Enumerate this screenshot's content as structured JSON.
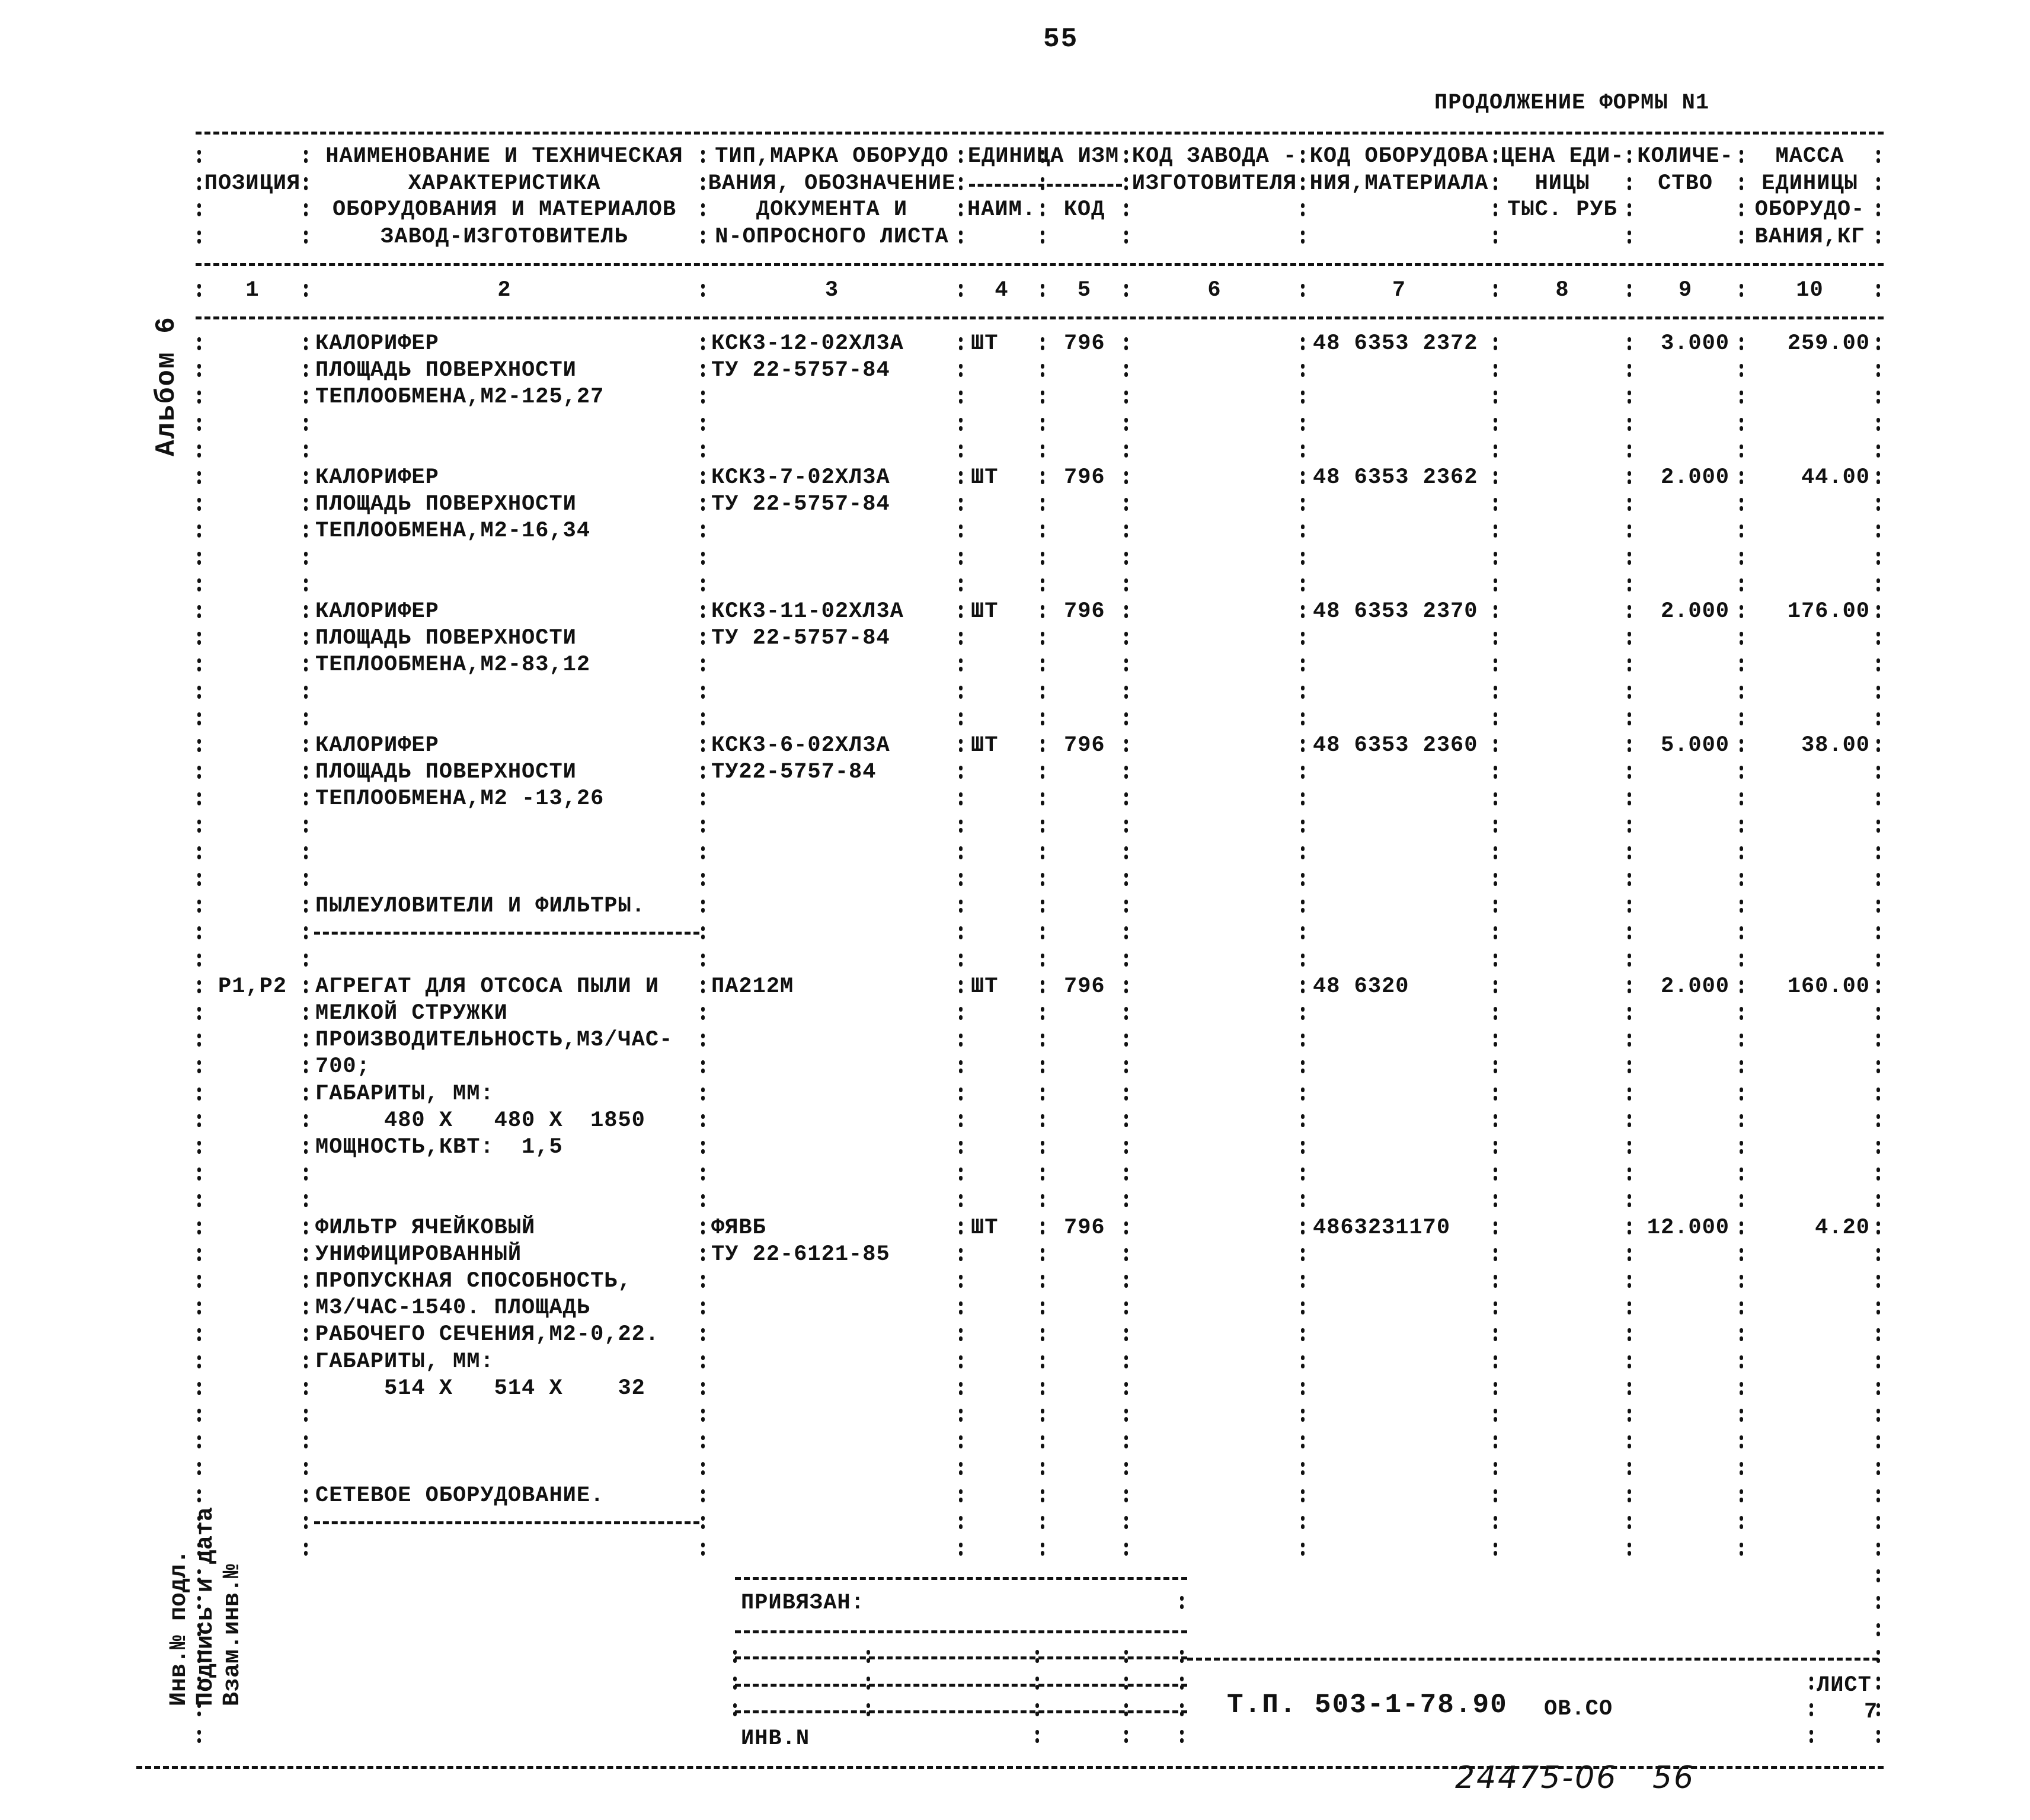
{
  "page_number": "55",
  "form_title": "ПРОДОЛЖЕНИЕ ФОРМЫ N1",
  "album_label": "Альбом 6",
  "margin_stamp": [
    "Инв.№ подл.",
    "Подпись и дата",
    "Взам.инв.№"
  ],
  "header": {
    "col1": [
      "",
      "ПОЗИЦИЯ",
      "",
      ""
    ],
    "col2": [
      "НАИМЕНОВАНИЕ И ТЕХНИЧЕСКАЯ",
      "ХАРАКТЕРИСТИКА",
      "ОБОРУДОВАНИЯ И МАТЕРИАЛОВ",
      "ЗАВОД-ИЗГОТОВИТЕЛЬ"
    ],
    "col3": [
      "ТИП,МАРКА ОБОРУДО",
      "ВАНИЯ, ОБОЗНАЧЕНИЕ",
      "ДОКУМЕНТА И",
      "N-ОПРОСНОГО ЛИСТА"
    ],
    "col45": [
      "ЕДИНИЦА ИЗМ"
    ],
    "col4": [
      "НАИМ."
    ],
    "col5": [
      "КОД"
    ],
    "col6": [
      "КОД ЗАВОДА -",
      "ИЗГОТОВИТЕЛЯ"
    ],
    "col7": [
      "КОД ОБОРУДОВА",
      "НИЯ,МАТЕРИАЛА"
    ],
    "col8": [
      "ЦЕНА ЕДИ-",
      "НИЦЫ",
      "ТЫС. РУБ"
    ],
    "col9": [
      "КОЛИЧЕ-",
      "СТВО"
    ],
    "col10": [
      "МАССА",
      "ЕДИНИЦЫ",
      "ОБОРУДО-",
      "ВАНИЯ,КГ"
    ],
    "numbers": [
      "1",
      "2",
      "3",
      "4",
      "5",
      "6",
      "7",
      "8",
      "9",
      "10"
    ]
  },
  "rows": [
    {
      "position": "",
      "name": [
        "КАЛОРИФЕР",
        "ПЛОЩАДЬ ПОВЕРХНОСТИ",
        "ТЕПЛООБМЕНА,М2-125,27"
      ],
      "type": [
        "КСК3-12-02ХЛ3А",
        "ТУ 22-5757-84"
      ],
      "unit": "ШТ",
      "unit_code": "796",
      "manufacturer_code": "",
      "equipment_code": "48 6353 2372",
      "price": "",
      "quantity": "3.000",
      "mass": "259.00"
    },
    {
      "position": "",
      "name": [
        "КАЛОРИФЕР",
        "ПЛОЩАДЬ ПОВЕРХНОСТИ",
        "ТЕПЛООБМЕНА,М2-16,34"
      ],
      "type": [
        "КСК3-7-02ХЛ3А",
        "ТУ 22-5757-84"
      ],
      "unit": "ШТ",
      "unit_code": "796",
      "manufacturer_code": "",
      "equipment_code": "48 6353 2362",
      "price": "",
      "quantity": "2.000",
      "mass": "44.00"
    },
    {
      "position": "",
      "name": [
        "КАЛОРИФЕР",
        "ПЛОЩАДЬ ПОВЕРХНОСТИ",
        "ТЕПЛООБМЕНА,М2-83,12"
      ],
      "type": [
        "КСК3-11-02ХЛ3А",
        "ТУ 22-5757-84"
      ],
      "unit": "ШТ",
      "unit_code": "796",
      "manufacturer_code": "",
      "equipment_code": "48 6353 2370",
      "price": "",
      "quantity": "2.000",
      "mass": "176.00"
    },
    {
      "position": "",
      "name": [
        "КАЛОРИФЕР",
        "ПЛОЩАДЬ ПОВЕРХНОСТИ",
        "ТЕПЛООБМЕНА,М2 -13,26"
      ],
      "type": [
        "КСК3-6-02ХЛ3А",
        "ТУ22-5757-84"
      ],
      "unit": "ШТ",
      "unit_code": "796",
      "manufacturer_code": "",
      "equipment_code": "48 6353 2360",
      "price": "",
      "quantity": "5.000",
      "mass": "38.00"
    },
    {
      "position": "P1,P2",
      "name": [
        "АГРЕГАТ ДЛЯ ОТСОСА ПЫЛИ И",
        "МЕЛКОЙ СТРУЖКИ",
        "ПРОИЗВОДИТЕЛЬНОСТЬ,М3/ЧАС-",
        "700;",
        "ГАБАРИТЫ, ММ:",
        "     480 X   480 X  1850",
        "МОЩНОСТЬ,КВТ:  1,5"
      ],
      "type": [
        "ПА212М"
      ],
      "unit": "ШТ",
      "unit_code": "796",
      "manufacturer_code": "",
      "equipment_code": "48 6320",
      "price": "",
      "quantity": "2.000",
      "mass": "160.00"
    },
    {
      "position": "",
      "name": [
        "ФИЛЬТР ЯЧЕЙКОВЫЙ",
        "УНИФИЦИРОВАННЫЙ",
        "ПРОПУСКНАЯ СПОСОБНОСТЬ,",
        "М3/ЧАС-1540. ПЛОЩАДЬ",
        "РАБОЧЕГО СЕЧЕНИЯ,М2-0,22.",
        "ГАБАРИТЫ, ММ:",
        "     514 X   514 X    32"
      ],
      "type": [
        "ФЯВБ",
        "ТУ 22-6121-85"
      ],
      "unit": "ШТ",
      "unit_code": "796",
      "manufacturer_code": "",
      "equipment_code": "4863231170",
      "price": "",
      "quantity": "12.000",
      "mass": "4.20"
    }
  ],
  "sections": [
    "ПЫЛЕУЛОВИТЕЛИ И ФИЛЬТРЫ.",
    "СЕТЕВОЕ ОБОРУДОВАНИЕ."
  ],
  "stamp": {
    "bound_label": "ПРИВЯЗАН:",
    "inv_label": "ИНВ.N",
    "document_code": "Т.П. 503-1-78.90",
    "document_suffix": "ОВ.СО",
    "sheet_label": "ЛИСТ",
    "sheet_number": "7"
  },
  "handwritten_note": "24475-06   56"
}
